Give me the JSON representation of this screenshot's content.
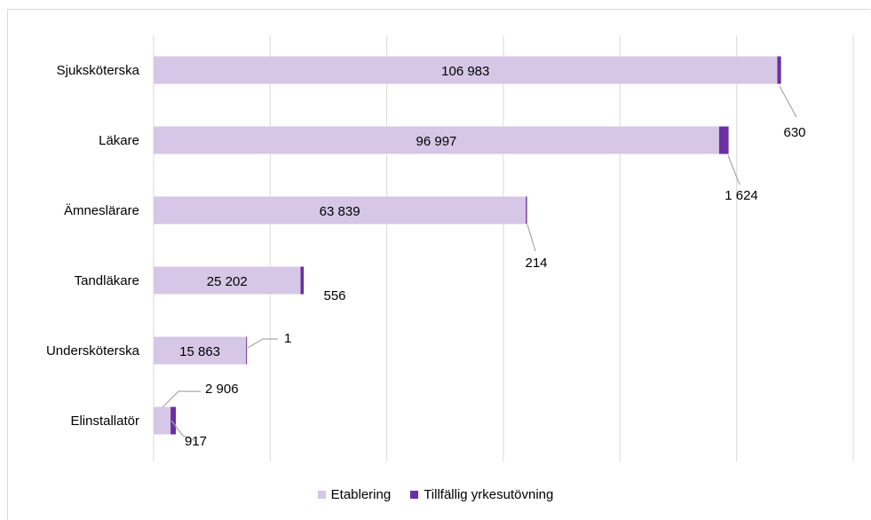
{
  "chart_data": {
    "type": "bar",
    "orientation": "horizontal",
    "stacked": true,
    "categories": [
      "Sjuksköterska",
      "Läkare",
      "Ämneslärare",
      "Tandläkare",
      "Undersköterska",
      "Elinstallatör"
    ],
    "series": [
      {
        "name": "Etablering",
        "color": "#d6c7e6",
        "values": [
          106983,
          96997,
          63839,
          25202,
          15863,
          2906
        ]
      },
      {
        "name": "Tillfällig yrkesutövning",
        "color": "#6b2fa1",
        "values": [
          630,
          1624,
          214,
          556,
          1,
          917
        ]
      }
    ],
    "data_labels": {
      "Etablering": [
        "106 983",
        "96 997",
        "63 839",
        "25 202",
        "15 863",
        "2 906"
      ],
      "Tillfällig yrkesutövning": [
        "630",
        "1 624",
        "214",
        "556",
        "1",
        "917"
      ]
    },
    "xlim": [
      0,
      120000
    ],
    "x_gridline_step": 20000,
    "grid": true,
    "legend_position": "bottom",
    "title": "",
    "xlabel": "",
    "ylabel": ""
  }
}
